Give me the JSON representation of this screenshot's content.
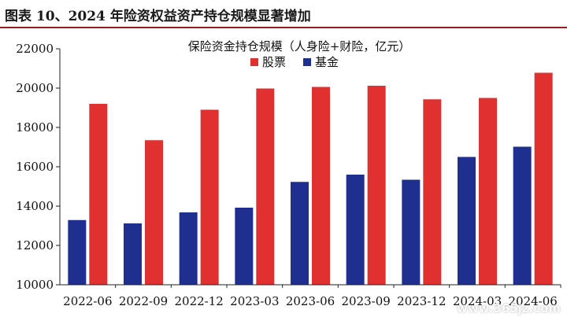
{
  "figure": {
    "header": "图表 10、2024 年险资权益资产持仓规模显著增加"
  },
  "watermark": "www.365jz.com",
  "chart_data": {
    "type": "bar",
    "title": "保险资金持仓规模（人身险+财险，亿元）",
    "categories": [
      "2022-06",
      "2022-09",
      "2022-12",
      "2023-03",
      "2023-06",
      "2023-09",
      "2023-12",
      "2024-03",
      "2024-06"
    ],
    "series": [
      {
        "name": "股票",
        "color": "#e03030",
        "values": [
          19200,
          17350,
          18900,
          19980,
          20060,
          20120,
          19430,
          19500,
          20780
        ]
      },
      {
        "name": "基金",
        "color": "#1f2f8f",
        "values": [
          13290,
          13120,
          13680,
          13920,
          15230,
          15600,
          15340,
          16500,
          17020
        ]
      }
    ],
    "ylim": [
      10000,
      22000
    ],
    "yticks": [
      10000,
      12000,
      14000,
      16000,
      18000,
      20000,
      22000
    ],
    "grid": false,
    "legend": "top-center"
  }
}
